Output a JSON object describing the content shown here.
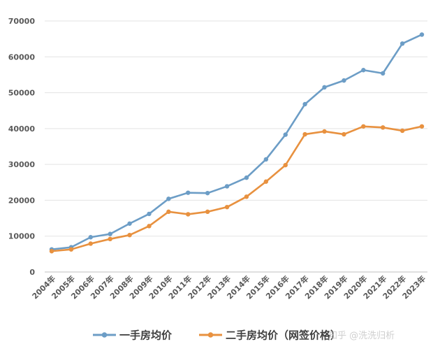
{
  "chart_data": {
    "type": "line",
    "title": "",
    "xlabel": "",
    "ylabel": "",
    "categories": [
      "2004年",
      "2005年",
      "2006年",
      "2007年",
      "2008年",
      "2009年",
      "2010年",
      "2011年",
      "2012年",
      "2013年",
      "2014年",
      "2015年",
      "2016年",
      "2017年",
      "2018年",
      "2019年",
      "2020年",
      "2021年",
      "2022年",
      "2023年"
    ],
    "ylim": [
      0,
      70000
    ],
    "yticks": [
      0,
      10000,
      20000,
      30000,
      40000,
      50000,
      60000,
      70000
    ],
    "grid": true,
    "legend_position": "bottom",
    "series": [
      {
        "name": "一手房均价",
        "color": "#6c9dc6",
        "values": [
          6300,
          6900,
          9700,
          10600,
          13500,
          16200,
          20400,
          22100,
          22000,
          23900,
          26300,
          31400,
          38300,
          46800,
          51500,
          53400,
          56300,
          55400,
          63700,
          66200
        ]
      },
      {
        "name": "二手房均价（网签价格）",
        "color": "#e8913f",
        "values": [
          5800,
          6300,
          7900,
          9200,
          10300,
          12800,
          16800,
          16100,
          16800,
          18100,
          21000,
          25200,
          29800,
          38400,
          39200,
          38400,
          40600,
          40300,
          39400,
          40600
        ]
      }
    ]
  },
  "watermark": "知乎 @洗洗归析"
}
